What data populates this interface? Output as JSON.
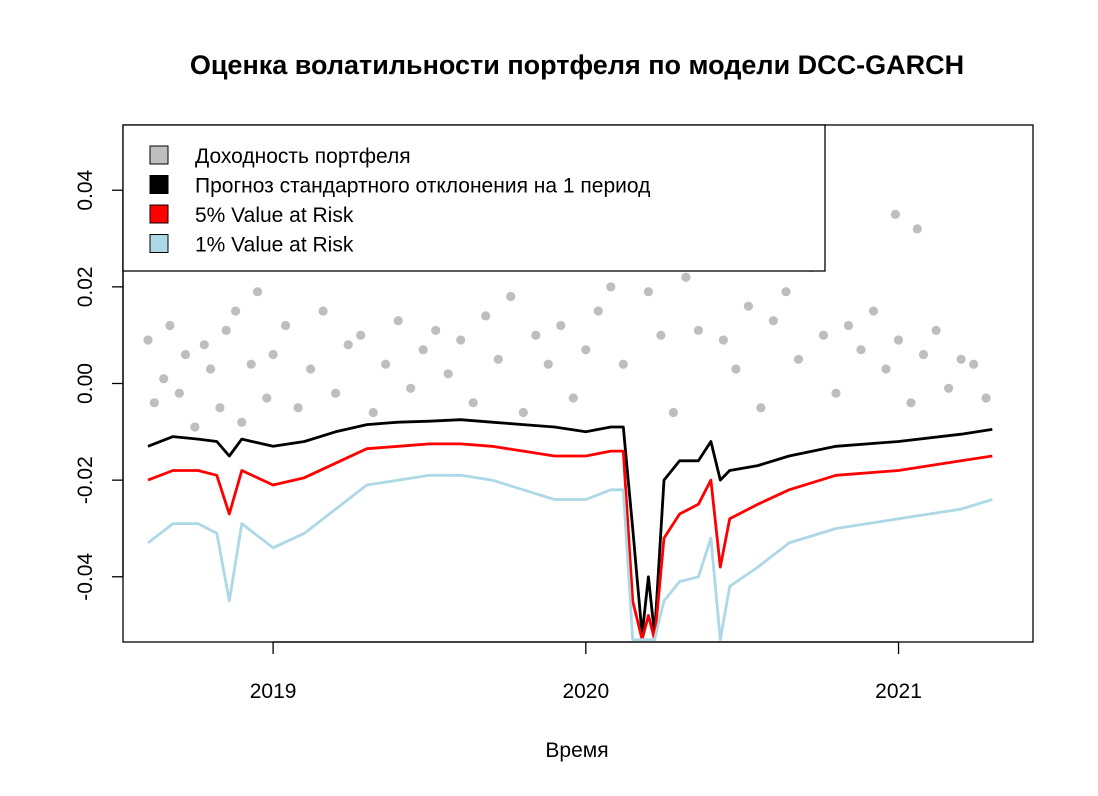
{
  "chart_data": {
    "type": "line",
    "title": "Оценка волатильности портфеля по модели DCC-GARCH",
    "xlabel": "Время",
    "ylabel": "",
    "xlim": [
      2018.52,
      2021.43
    ],
    "ylim": [
      -0.0535,
      0.0535
    ],
    "x_ticks": [
      {
        "value": 2019.0,
        "label": "2019"
      },
      {
        "value": 2020.0,
        "label": "2020"
      },
      {
        "value": 2021.0,
        "label": "2021"
      }
    ],
    "y_ticks": [
      {
        "value": 0.04,
        "label": "0.04"
      },
      {
        "value": 0.02,
        "label": "0.02"
      },
      {
        "value": 0.0,
        "label": "0.00"
      },
      {
        "value": -0.02,
        "label": "-0.02"
      },
      {
        "value": -0.04,
        "label": "-0.04"
      }
    ],
    "legend": {
      "position": "top-left",
      "entries": [
        {
          "label": "Доходность портфеля",
          "color": "#bebebe"
        },
        {
          "label": "Прогноз стандартного отклонения на 1 период",
          "color": "#000000"
        },
        {
          "label": "5% Value at Risk",
          "color": "#ff0000"
        },
        {
          "label": "1% Value at Risk",
          "color": "#add8e6"
        }
      ]
    },
    "series": [
      {
        "name": "Прогноз стандартного отклонения на 1 период",
        "kind": "line",
        "color": "#000000",
        "x": [
          2018.6,
          2018.68,
          2018.76,
          2018.82,
          2018.86,
          2018.9,
          2019.0,
          2019.1,
          2019.2,
          2019.3,
          2019.4,
          2019.5,
          2019.6,
          2019.7,
          2019.8,
          2019.9,
          2020.0,
          2020.08,
          2020.12,
          2020.15,
          2020.18,
          2020.2,
          2020.22,
          2020.25,
          2020.3,
          2020.36,
          2020.4,
          2020.43,
          2020.46,
          2020.55,
          2020.65,
          2020.8,
          2021.0,
          2021.2,
          2021.3
        ],
        "y": [
          -0.013,
          -0.011,
          -0.0115,
          -0.012,
          -0.015,
          -0.0115,
          -0.013,
          -0.012,
          -0.01,
          -0.0085,
          -0.008,
          -0.0078,
          -0.0075,
          -0.008,
          -0.0085,
          -0.009,
          -0.01,
          -0.009,
          -0.009,
          -0.03,
          -0.052,
          -0.04,
          -0.052,
          -0.02,
          -0.016,
          -0.016,
          -0.012,
          -0.02,
          -0.018,
          -0.017,
          -0.015,
          -0.013,
          -0.012,
          -0.0105,
          -0.0095
        ]
      },
      {
        "name": "5% Value at Risk",
        "kind": "line",
        "color": "#ff0000",
        "x": [
          2018.6,
          2018.68,
          2018.76,
          2018.82,
          2018.86,
          2018.9,
          2019.0,
          2019.1,
          2019.2,
          2019.3,
          2019.4,
          2019.5,
          2019.6,
          2019.7,
          2019.8,
          2019.9,
          2020.0,
          2020.08,
          2020.12,
          2020.15,
          2020.18,
          2020.2,
          2020.22,
          2020.25,
          2020.3,
          2020.36,
          2020.4,
          2020.43,
          2020.46,
          2020.55,
          2020.65,
          2020.8,
          2021.0,
          2021.2,
          2021.3
        ],
        "y": [
          -0.02,
          -0.018,
          -0.018,
          -0.019,
          -0.027,
          -0.018,
          -0.021,
          -0.0195,
          -0.0165,
          -0.0135,
          -0.013,
          -0.0125,
          -0.0125,
          -0.013,
          -0.014,
          -0.015,
          -0.015,
          -0.014,
          -0.014,
          -0.045,
          -0.053,
          -0.048,
          -0.053,
          -0.032,
          -0.027,
          -0.025,
          -0.02,
          -0.038,
          -0.028,
          -0.025,
          -0.022,
          -0.019,
          -0.018,
          -0.016,
          -0.015
        ]
      },
      {
        "name": "1% Value at Risk",
        "kind": "line",
        "color": "#add8e6",
        "x": [
          2018.6,
          2018.68,
          2018.76,
          2018.82,
          2018.86,
          2018.9,
          2019.0,
          2019.1,
          2019.2,
          2019.3,
          2019.4,
          2019.5,
          2019.6,
          2019.7,
          2019.8,
          2019.9,
          2020.0,
          2020.08,
          2020.12,
          2020.15,
          2020.18,
          2020.2,
          2020.22,
          2020.25,
          2020.3,
          2020.36,
          2020.4,
          2020.43,
          2020.46,
          2020.55,
          2020.65,
          2020.8,
          2021.0,
          2021.2,
          2021.3
        ],
        "y": [
          -0.033,
          -0.029,
          -0.029,
          -0.031,
          -0.045,
          -0.029,
          -0.034,
          -0.031,
          -0.026,
          -0.021,
          -0.02,
          -0.019,
          -0.019,
          -0.02,
          -0.022,
          -0.024,
          -0.024,
          -0.022,
          -0.022,
          -0.053,
          -0.053,
          -0.053,
          -0.053,
          -0.045,
          -0.041,
          -0.04,
          -0.032,
          -0.053,
          -0.042,
          -0.038,
          -0.033,
          -0.03,
          -0.028,
          -0.026,
          -0.024
        ]
      },
      {
        "name": "Доходность портфеля",
        "kind": "scatter",
        "color": "#bebebe",
        "x": [
          2018.6,
          2018.62,
          2018.65,
          2018.67,
          2018.7,
          2018.72,
          2018.75,
          2018.78,
          2018.8,
          2018.83,
          2018.85,
          2018.88,
          2018.9,
          2018.93,
          2018.95,
          2018.98,
          2019.0,
          2019.04,
          2019.08,
          2019.12,
          2019.16,
          2019.2,
          2019.24,
          2019.28,
          2019.32,
          2019.36,
          2019.4,
          2019.44,
          2019.48,
          2019.52,
          2019.56,
          2019.6,
          2019.64,
          2019.68,
          2019.72,
          2019.76,
          2019.8,
          2019.84,
          2019.88,
          2019.92,
          2019.96,
          2020.0,
          2020.04,
          2020.08,
          2020.12,
          2020.16,
          2020.2,
          2020.24,
          2020.28,
          2020.32,
          2020.36,
          2020.4,
          2020.44,
          2020.48,
          2020.52,
          2020.56,
          2020.6,
          2020.64,
          2020.68,
          2020.72,
          2020.76,
          2020.8,
          2020.84,
          2020.88,
          2020.92,
          2020.96,
          2021.0,
          2021.04,
          2021.08,
          2021.12,
          2021.16,
          2021.2,
          2021.24,
          2021.28,
          2020.99,
          2021.06
        ],
        "y": [
          0.009,
          -0.004,
          0.001,
          0.012,
          -0.002,
          0.006,
          -0.009,
          0.008,
          0.003,
          -0.005,
          0.011,
          0.015,
          -0.008,
          0.004,
          0.019,
          -0.003,
          0.006,
          0.012,
          -0.005,
          0.003,
          0.015,
          -0.002,
          0.008,
          0.01,
          -0.006,
          0.004,
          0.013,
          -0.001,
          0.007,
          0.011,
          0.002,
          0.009,
          -0.004,
          0.014,
          0.005,
          0.018,
          -0.006,
          0.01,
          0.004,
          0.012,
          -0.003,
          0.007,
          0.015,
          0.02,
          0.004,
          0.03,
          0.019,
          0.01,
          -0.006,
          0.022,
          0.011,
          0.025,
          0.009,
          0.003,
          0.016,
          -0.005,
          0.013,
          0.019,
          0.005,
          0.024,
          0.01,
          -0.002,
          0.012,
          0.007,
          0.015,
          0.003,
          0.009,
          -0.004,
          0.006,
          0.011,
          -0.001,
          0.005,
          0.004,
          -0.003,
          0.035,
          0.032
        ]
      }
    ]
  }
}
